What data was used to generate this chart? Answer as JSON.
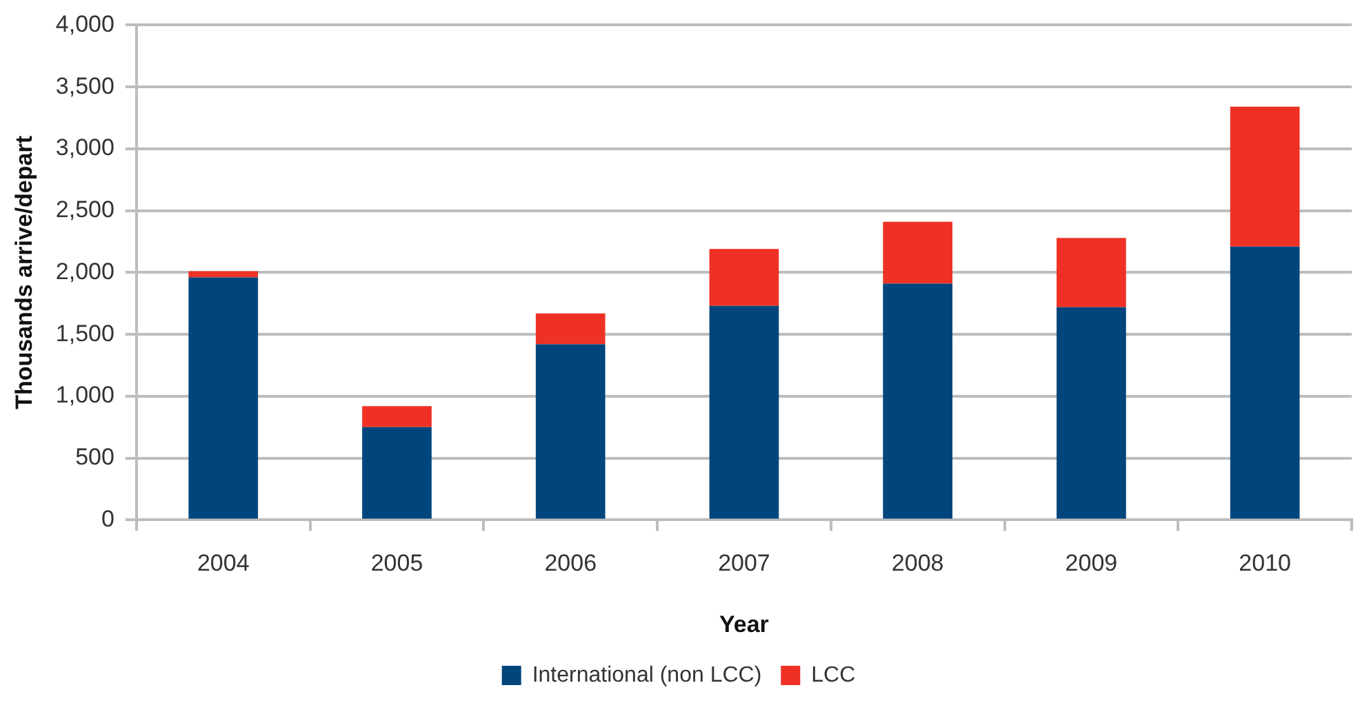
{
  "chart_data": {
    "type": "bar",
    "stacked": true,
    "xlabel": "Year",
    "ylabel": "Thousands arrive/depart",
    "categories": [
      "2004",
      "2005",
      "2006",
      "2007",
      "2008",
      "2009",
      "2010"
    ],
    "series": [
      {
        "name": "International (non LCC)",
        "color": "#00457c",
        "values": [
          1960,
          750,
          1420,
          1730,
          1910,
          1720,
          2210
        ]
      },
      {
        "name": "LCC",
        "color": "#ee3124",
        "values": [
          50,
          170,
          250,
          460,
          500,
          560,
          1130
        ]
      }
    ],
    "ylim": [
      0,
      4000
    ],
    "yticks": [
      {
        "value": 0,
        "label": "0"
      },
      {
        "value": 500,
        "label": "500"
      },
      {
        "value": 1000,
        "label": "1,000"
      },
      {
        "value": 1500,
        "label": "1,500"
      },
      {
        "value": 2000,
        "label": "2,000"
      },
      {
        "value": 2500,
        "label": "2,500"
      },
      {
        "value": 3000,
        "label": "3,000"
      },
      {
        "value": 3500,
        "label": "3,500"
      },
      {
        "value": 4000,
        "label": "4,000"
      }
    ],
    "grid": "y",
    "legend": "bottom"
  }
}
